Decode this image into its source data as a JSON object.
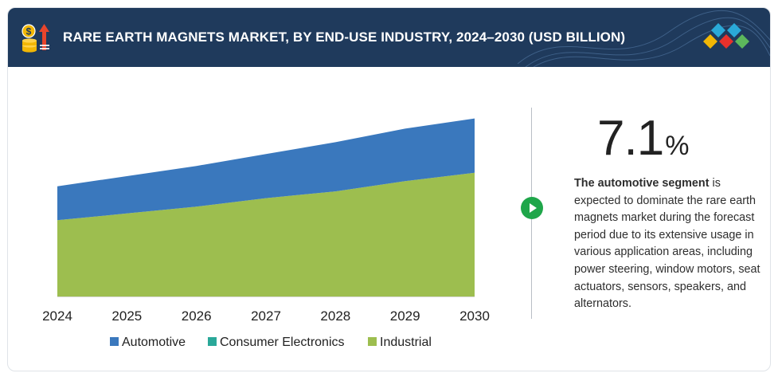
{
  "header": {
    "title": "RARE EARTH MAGNETS MARKET, BY END-USE INDUSTRY, 2024–2030 (USD BILLION)",
    "icon": "coins-growth-icon",
    "logo": "brand-diamonds-logo"
  },
  "colors": {
    "header_bg": "#1f3a5c",
    "automotive": "#3a78bd",
    "consumer_electronics": "#2aa899",
    "industrial": "#9dbe4f",
    "play": "#1fa64a"
  },
  "chart_data": {
    "type": "area",
    "stacked": true,
    "categories": [
      "2024",
      "2025",
      "2026",
      "2027",
      "2028",
      "2029",
      "2030"
    ],
    "series": [
      {
        "name": "Industrial",
        "color": "#9dbe4f",
        "values": [
          45,
          49,
          53,
          58,
          62,
          68,
          73
        ]
      },
      {
        "name": "Consumer Electronics",
        "color": "#2aa899",
        "values": [
          0,
          0,
          0,
          0,
          0,
          0,
          0
        ]
      },
      {
        "name": "Automotive",
        "color": "#3a78bd",
        "values": [
          20,
          22,
          24,
          26,
          29,
          31,
          32
        ]
      }
    ],
    "legend": [
      "Automotive",
      "Consumer Electronics",
      "Industrial"
    ],
    "legend_position": "bottom",
    "xlabel": "",
    "ylabel": "",
    "grid": false
  },
  "kpi": {
    "value": "7.1",
    "unit": "%"
  },
  "description": {
    "bold": "The automotive segment",
    "rest": " is expected to dominate the rare earth magnets market during the forecast period due to its extensive usage in various application areas, including power steering, window motors, seat actuators, sensors, speakers, and alternators."
  }
}
